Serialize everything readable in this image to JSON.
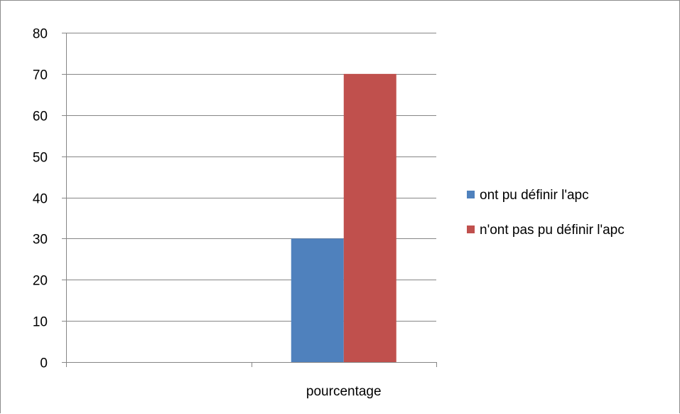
{
  "chart_data": {
    "type": "bar",
    "categories": [
      "",
      "pourcentage"
    ],
    "series": [
      {
        "name": "ont pu définir l'apc",
        "values": [
          null,
          30
        ],
        "color": "#4f81bd"
      },
      {
        "name": "n'ont pas pu définir l'apc",
        "values": [
          null,
          70
        ],
        "color": "#c0504d"
      }
    ],
    "ylim": [
      0,
      80
    ],
    "yticks": [
      "0",
      "10",
      "20",
      "30",
      "40",
      "50",
      "60",
      "70",
      "80"
    ],
    "grid": true,
    "legend_position": "right",
    "colors": {
      "gridline": "#868686",
      "axis": "#868686",
      "frame": "#8c8c8c"
    }
  }
}
